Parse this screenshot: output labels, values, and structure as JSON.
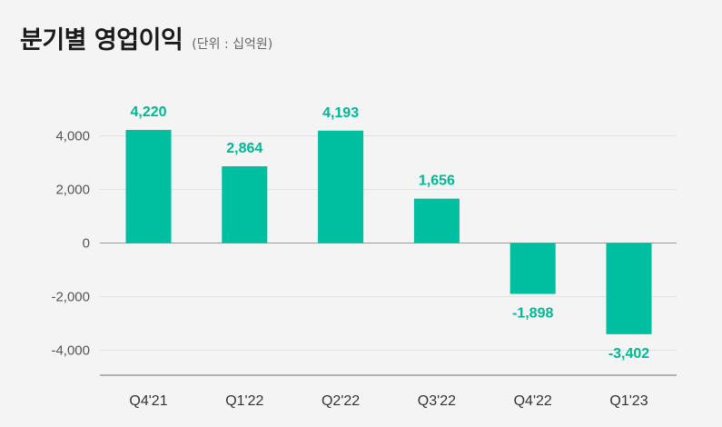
{
  "header": {
    "title": "분기별 영업이익",
    "unit": "(단위 : 십억원)"
  },
  "colors": {
    "bar": "#00bfa0",
    "label": "#00b894",
    "grid": "#e2e2e2",
    "axis": "#999999"
  },
  "chart_data": {
    "type": "bar",
    "categories": [
      "Q4'21",
      "Q1'22",
      "Q2'22",
      "Q3'22",
      "Q4'22",
      "Q1'23"
    ],
    "values": [
      4220,
      2864,
      4193,
      1656,
      -1898,
      -3402
    ],
    "value_labels": [
      "4,220",
      "2,864",
      "4,193",
      "1,656",
      "-1,898",
      "-3,402"
    ],
    "yticks": [
      4000,
      2000,
      0,
      -2000,
      -4000
    ],
    "ytick_labels": [
      "4,000",
      "2,000",
      "0",
      "-2,000",
      "-4,000"
    ],
    "ylim": [
      -4900,
      4900
    ],
    "grid": true,
    "title": "분기별 영업이익",
    "xlabel": "",
    "ylabel": ""
  }
}
